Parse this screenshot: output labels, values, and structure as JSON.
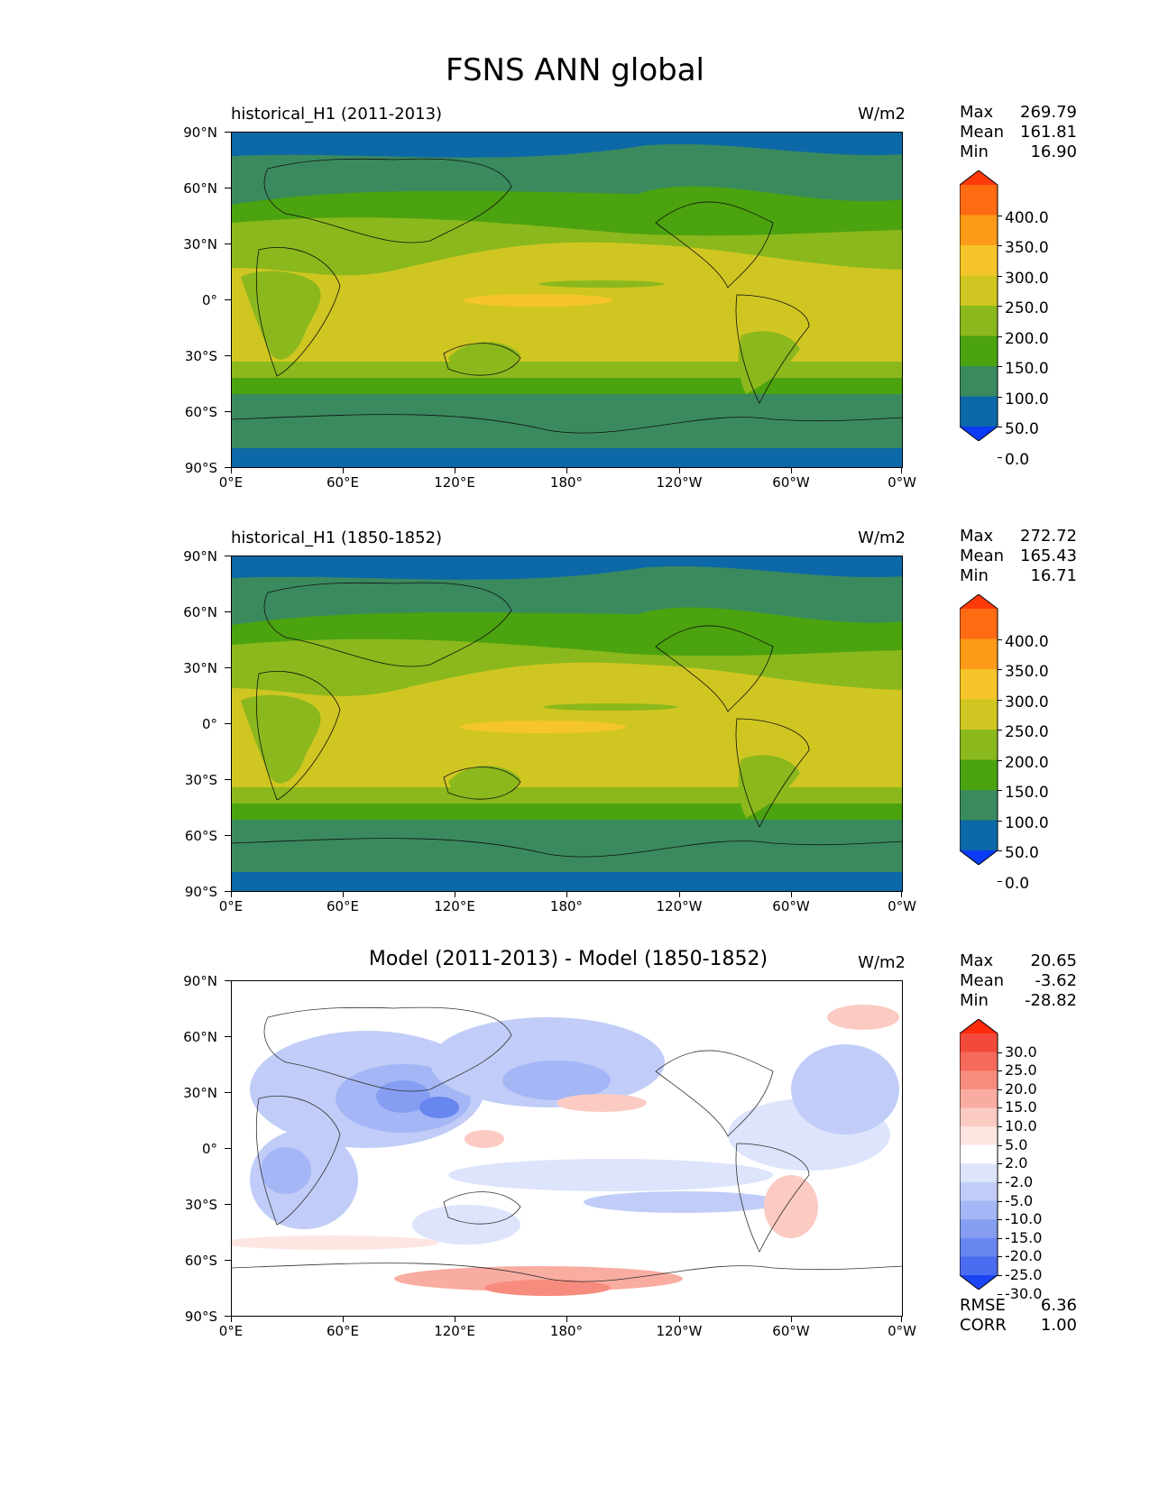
{
  "title": "FSNS ANN global",
  "lon_labels": [
    "0°E",
    "60°E",
    "120°E",
    "180°",
    "120°W",
    "60°W",
    "0°W"
  ],
  "lat_labels": [
    "90°N",
    "60°N",
    "30°N",
    "0°",
    "30°S",
    "60°S",
    "90°S"
  ],
  "panels": [
    {
      "id": "test",
      "title": "historical_H1 (2011-2013)",
      "units": "W/m2",
      "stats": {
        "max_label": "Max",
        "max": "269.79",
        "mean_label": "Mean",
        "mean": "161.81",
        "min_label": "Min",
        "min": "16.90"
      },
      "colorbar": {
        "levels": [
          "400.0",
          "350.0",
          "300.0",
          "250.0",
          "200.0",
          "150.0",
          "100.0",
          "50.0",
          "0.0"
        ],
        "colors": [
          "#ff3a0a",
          "#fe6b12",
          "#fd9b18",
          "#f6c52a",
          "#cfc622",
          "#8bb81c",
          "#4aa30f",
          "#3a8a5e",
          "#0d68a8",
          "#0a3bf5"
        ]
      }
    },
    {
      "id": "reference",
      "title": "historical_H1 (1850-1852)",
      "units": "W/m2",
      "stats": {
        "max_label": "Max",
        "max": "272.72",
        "mean_label": "Mean",
        "mean": "165.43",
        "min_label": "Min",
        "min": "16.71"
      },
      "colorbar": {
        "levels": [
          "400.0",
          "350.0",
          "300.0",
          "250.0",
          "200.0",
          "150.0",
          "100.0",
          "50.0",
          "0.0"
        ],
        "colors": [
          "#ff3a0a",
          "#fe6b12",
          "#fd9b18",
          "#f6c52a",
          "#cfc622",
          "#8bb81c",
          "#4aa30f",
          "#3a8a5e",
          "#0d68a8",
          "#0a3bf5"
        ]
      }
    },
    {
      "id": "diff",
      "title": "Model (2011-2013) - Model (1850-1852)",
      "units": "W/m2",
      "stats": {
        "max_label": "Max",
        "max": "20.65",
        "mean_label": "Mean",
        "mean": "-3.62",
        "min_label": "Min",
        "min": "-28.82"
      },
      "colorbar": {
        "levels": [
          "30.0",
          "25.0",
          "20.0",
          "15.0",
          "10.0",
          "5.0",
          "2.0",
          "-2.0",
          "-5.0",
          "-10.0",
          "-15.0",
          "-20.0",
          "-25.0",
          "-30.0"
        ],
        "colors": [
          "#ff2a0a",
          "#f24a3a",
          "#f56a5a",
          "#f78c7e",
          "#f9aca0",
          "#fbcbc3",
          "#fde6e2",
          "#ffffff",
          "#dde4fb",
          "#c1cdf8",
          "#a4b6f5",
          "#869ef2",
          "#6886ef",
          "#4a6cf0",
          "#1b44f5"
        ]
      },
      "metrics": {
        "rmse_label": "RMSE",
        "rmse": "6.36",
        "corr_label": "CORR",
        "corr": "1.00"
      }
    }
  ]
}
